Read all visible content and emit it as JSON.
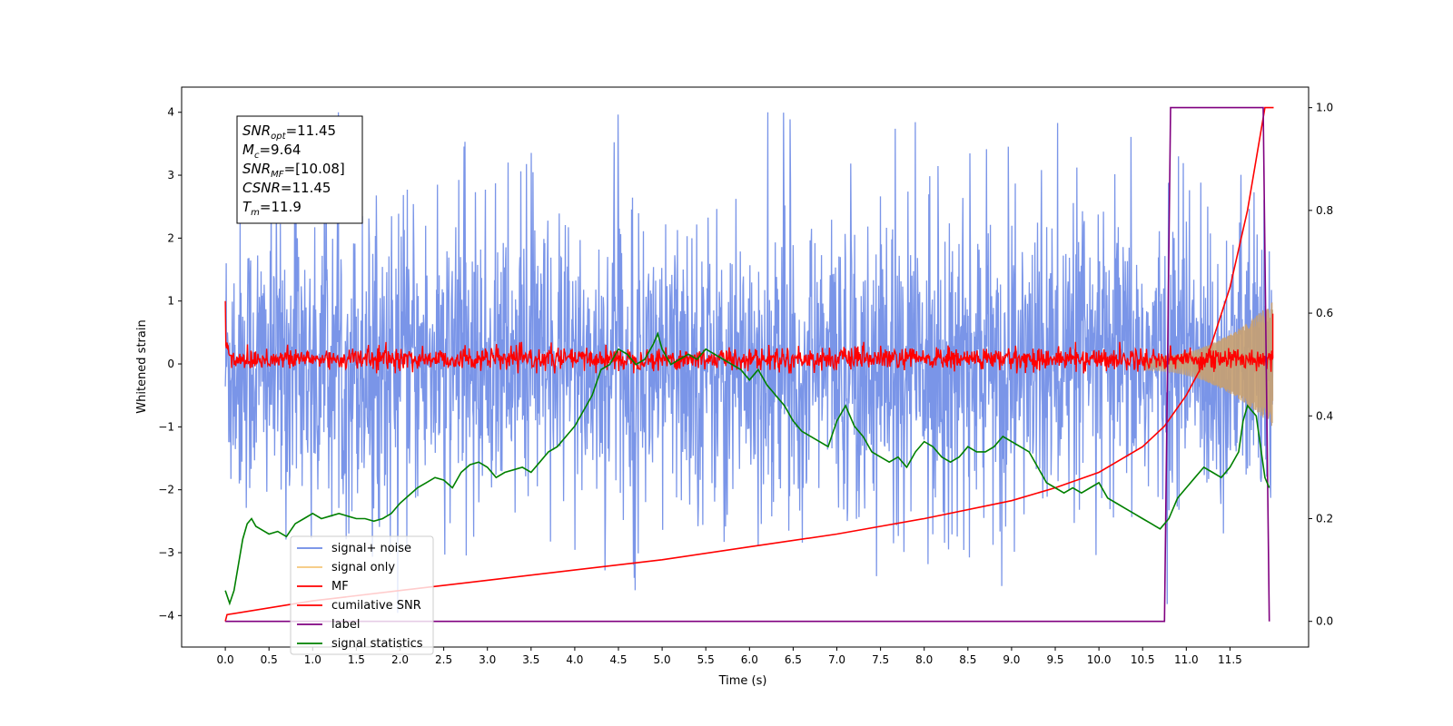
{
  "chart_data": {
    "type": "line",
    "xlabel": "Time (s)",
    "ylabel_left": "Whitened strain",
    "xlim": [
      -0.5,
      12.4
    ],
    "ylim_left": [
      -4.5,
      4.4
    ],
    "ylim_right": [
      -0.05,
      1.04
    ],
    "x_ticks": [
      "0.0",
      "0.5",
      "1.0",
      "1.5",
      "2.0",
      "2.5",
      "3.0",
      "3.5",
      "4.0",
      "4.5",
      "5.0",
      "5.5",
      "6.0",
      "6.5",
      "7.0",
      "7.5",
      "8.0",
      "8.5",
      "9.0",
      "9.5",
      "10.0",
      "10.5",
      "11.0",
      "11.5"
    ],
    "y_ticks_left": [
      "4",
      "3",
      "2",
      "1",
      "0",
      "−1",
      "−2",
      "−3",
      "−4"
    ],
    "y_ticks_right": [
      "1.0",
      "0.8",
      "0.6",
      "0.4",
      "0.2",
      "0.0"
    ],
    "grid": false,
    "legend_location": "lower-left",
    "legend": [
      {
        "label": "signal+ noise",
        "color": "#6b89e6"
      },
      {
        "label": "signal only",
        "color": "#f5c77a"
      },
      {
        "label": "MF",
        "color": "#ff0000"
      },
      {
        "label": "cumilative SNR",
        "color": "#ff0000"
      },
      {
        "label": "label",
        "color": "#800080"
      },
      {
        "label": "signal statistics",
        "color": "#008000"
      }
    ],
    "annotation_lines": [
      {
        "base": "SNR",
        "sub": "opt",
        "value": "=11.45"
      },
      {
        "base": "M",
        "sub": "c",
        "value": "=9.64"
      },
      {
        "base": "SNR",
        "sub": "MF",
        "value": "=[10.08]"
      },
      {
        "base": "CSNR",
        "sub": "",
        "value": "=11.45"
      },
      {
        "base": "T",
        "sub": "m",
        "value": "=11.9"
      }
    ],
    "series": [
      {
        "name": "signal+ noise",
        "axis": "left",
        "color": "#6b89e6",
        "description_envelope": {
          "x_range": [
            0.0,
            11.99
          ],
          "typical_amplitude": 1.3,
          "peak_max": 4.0,
          "peak_min": -4.15
        }
      },
      {
        "name": "signal only",
        "axis": "left",
        "color": "#f5c77a",
        "chirp": {
          "x_range": [
            10.5,
            11.99
          ],
          "amplitude_start": 0.1,
          "amplitude_end": 1.0
        }
      },
      {
        "name": "MF",
        "axis": "left",
        "color": "#ff0000",
        "x_range": [
          0.0,
          11.99
        ],
        "baseline_range": [
          -0.1,
          0.3
        ],
        "start_value": 1.0,
        "end_value": 0.8
      },
      {
        "name": "cumilative SNR",
        "axis": "right",
        "color": "#ff0000",
        "x": [
          0.0,
          0.02,
          1.0,
          2.0,
          3.0,
          4.0,
          5.0,
          6.0,
          7.0,
          8.0,
          9.0,
          9.5,
          10.0,
          10.5,
          10.75,
          11.0,
          11.25,
          11.5,
          11.7,
          11.8,
          11.85,
          11.9,
          12.0
        ],
        "y": [
          0.0,
          0.013,
          0.04,
          0.06,
          0.08,
          0.1,
          0.12,
          0.145,
          0.17,
          0.2,
          0.235,
          0.26,
          0.29,
          0.34,
          0.38,
          0.44,
          0.52,
          0.65,
          0.8,
          0.9,
          0.95,
          1.0,
          1.0
        ]
      },
      {
        "name": "label",
        "axis": "right",
        "color": "#800080",
        "x": [
          0.0,
          10.75,
          10.82,
          11.88,
          11.95
        ],
        "y": [
          0.0,
          0.0,
          1.0,
          1.0,
          0.0
        ]
      },
      {
        "name": "signal statistics",
        "axis": "right",
        "color": "#008000",
        "x": [
          0.0,
          0.05,
          0.1,
          0.15,
          0.2,
          0.25,
          0.3,
          0.35,
          0.4,
          0.5,
          0.6,
          0.7,
          0.8,
          0.9,
          1.0,
          1.1,
          1.2,
          1.3,
          1.4,
          1.5,
          1.6,
          1.7,
          1.8,
          1.9,
          2.0,
          2.1,
          2.2,
          2.3,
          2.4,
          2.5,
          2.6,
          2.7,
          2.8,
          2.9,
          3.0,
          3.1,
          3.2,
          3.3,
          3.4,
          3.5,
          3.6,
          3.7,
          3.8,
          3.9,
          4.0,
          4.1,
          4.2,
          4.3,
          4.4,
          4.5,
          4.6,
          4.7,
          4.8,
          4.9,
          4.95,
          5.0,
          5.1,
          5.2,
          5.3,
          5.4,
          5.5,
          5.6,
          5.7,
          5.8,
          5.9,
          6.0,
          6.1,
          6.2,
          6.3,
          6.4,
          6.5,
          6.6,
          6.7,
          6.8,
          6.9,
          7.0,
          7.1,
          7.2,
          7.3,
          7.4,
          7.5,
          7.6,
          7.7,
          7.8,
          7.9,
          8.0,
          8.1,
          8.2,
          8.3,
          8.4,
          8.5,
          8.6,
          8.7,
          8.8,
          8.9,
          9.0,
          9.1,
          9.2,
          9.3,
          9.4,
          9.5,
          9.6,
          9.7,
          9.8,
          9.9,
          10.0,
          10.1,
          10.2,
          10.3,
          10.4,
          10.5,
          10.6,
          10.7,
          10.8,
          10.9,
          11.0,
          11.1,
          11.2,
          11.3,
          11.4,
          11.5,
          11.6,
          11.65,
          11.7,
          11.8,
          11.9,
          11.95
        ],
        "y": [
          0.06,
          0.035,
          0.06,
          0.11,
          0.16,
          0.19,
          0.2,
          0.185,
          0.18,
          0.17,
          0.175,
          0.165,
          0.19,
          0.2,
          0.21,
          0.2,
          0.205,
          0.21,
          0.205,
          0.2,
          0.2,
          0.195,
          0.2,
          0.21,
          0.23,
          0.245,
          0.26,
          0.27,
          0.28,
          0.275,
          0.26,
          0.29,
          0.305,
          0.31,
          0.3,
          0.28,
          0.29,
          0.295,
          0.3,
          0.29,
          0.31,
          0.33,
          0.34,
          0.36,
          0.38,
          0.41,
          0.44,
          0.49,
          0.5,
          0.53,
          0.52,
          0.5,
          0.51,
          0.54,
          0.56,
          0.53,
          0.5,
          0.51,
          0.52,
          0.51,
          0.53,
          0.52,
          0.51,
          0.5,
          0.49,
          0.47,
          0.49,
          0.46,
          0.44,
          0.42,
          0.39,
          0.37,
          0.36,
          0.35,
          0.34,
          0.39,
          0.42,
          0.38,
          0.36,
          0.33,
          0.32,
          0.31,
          0.32,
          0.3,
          0.33,
          0.35,
          0.34,
          0.32,
          0.31,
          0.32,
          0.34,
          0.33,
          0.33,
          0.34,
          0.36,
          0.35,
          0.34,
          0.33,
          0.3,
          0.27,
          0.26,
          0.25,
          0.26,
          0.25,
          0.26,
          0.27,
          0.24,
          0.23,
          0.22,
          0.21,
          0.2,
          0.19,
          0.18,
          0.2,
          0.24,
          0.26,
          0.28,
          0.3,
          0.29,
          0.28,
          0.3,
          0.33,
          0.39,
          0.42,
          0.4,
          0.28,
          0.26
        ]
      }
    ]
  }
}
